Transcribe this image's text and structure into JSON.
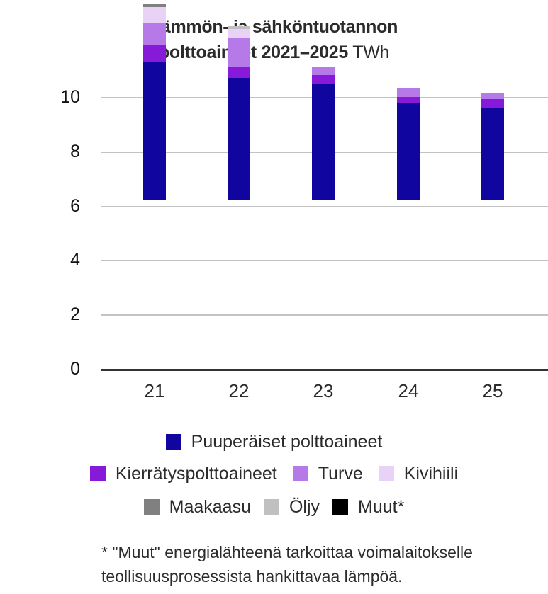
{
  "title": {
    "line1": "Lämmön- ja sähköntuotannon",
    "line2_bold": "polttoaineet 2021–2025",
    "line2_unit": " TWh"
  },
  "colors": {
    "puuperaiset": "#10069F",
    "kierratys": "#871AD9",
    "turve": "#B57AE8",
    "kivihiili": "#E8D3F7",
    "maakaasu": "#808080",
    "oljy": "#C0C0C0",
    "muut": "#000000",
    "grid": "#C3C3C3",
    "axis": "#333333"
  },
  "chart_data": {
    "type": "bar",
    "stacked": true,
    "title": "Lämmön- ja sähköntuotannon polttoaineet 2021–2025 TWh",
    "xlabel": "",
    "ylabel": "TWh",
    "ylim": [
      0,
      10
    ],
    "yticks": [
      0,
      2,
      4,
      6,
      8,
      10
    ],
    "grid": true,
    "legend_position": "bottom",
    "categories": [
      "21",
      "22",
      "23",
      "24",
      "25"
    ],
    "series": [
      {
        "name": "Puuperäiset polttoaineet",
        "color": "#10069F",
        "values": [
          5.1,
          4.5,
          4.3,
          3.6,
          3.4
        ]
      },
      {
        "name": "Kierrätyspolttoaineet",
        "color": "#871AD9",
        "values": [
          0.6,
          0.4,
          0.3,
          0.2,
          0.3
        ]
      },
      {
        "name": "Turve",
        "color": "#B57AE8",
        "values": [
          0.8,
          1.1,
          0.3,
          0.3,
          0.2
        ]
      },
      {
        "name": "Kivihiili",
        "color": "#E8D3F7",
        "values": [
          0.6,
          0.3,
          0.0,
          0.0,
          0.0
        ]
      },
      {
        "name": "Maakaasu",
        "color": "#808080",
        "values": [
          0.1,
          0.0,
          0.0,
          0.0,
          0.0
        ]
      },
      {
        "name": "Öljy",
        "color": "#C0C0C0",
        "values": [
          0.0,
          0.1,
          0.0,
          0.0,
          0.0
        ]
      },
      {
        "name": "Muut*",
        "color": "#000000",
        "values": [
          0.0,
          0.0,
          0.0,
          0.0,
          0.0
        ]
      }
    ],
    "annotations": [
      "* \"Muut\" energialähteenä tarkoittaa voimalaitokselle teollisuusprosessista hankittavaa lämpöä."
    ]
  },
  "legend": {
    "rows": [
      [
        {
          "label": "Puuperäiset polttoaineet",
          "color": "#10069F"
        }
      ],
      [
        {
          "label": "Kierrätyspolttoaineet",
          "color": "#871AD9"
        },
        {
          "label": "Turve",
          "color": "#B57AE8"
        },
        {
          "label": "Kivihiili",
          "color": "#E8D3F7"
        }
      ],
      [
        {
          "label": "Maakaasu",
          "color": "#808080"
        },
        {
          "label": "Öljy",
          "color": "#C0C0C0"
        },
        {
          "label": "Muut*",
          "color": "#000000"
        }
      ]
    ]
  },
  "footnote": {
    "line1": "* \"Muut\" energialähteenä tarkoittaa voimalaitokselle",
    "line2": "teollisuusprosessista hankittavaa lämpöä."
  }
}
